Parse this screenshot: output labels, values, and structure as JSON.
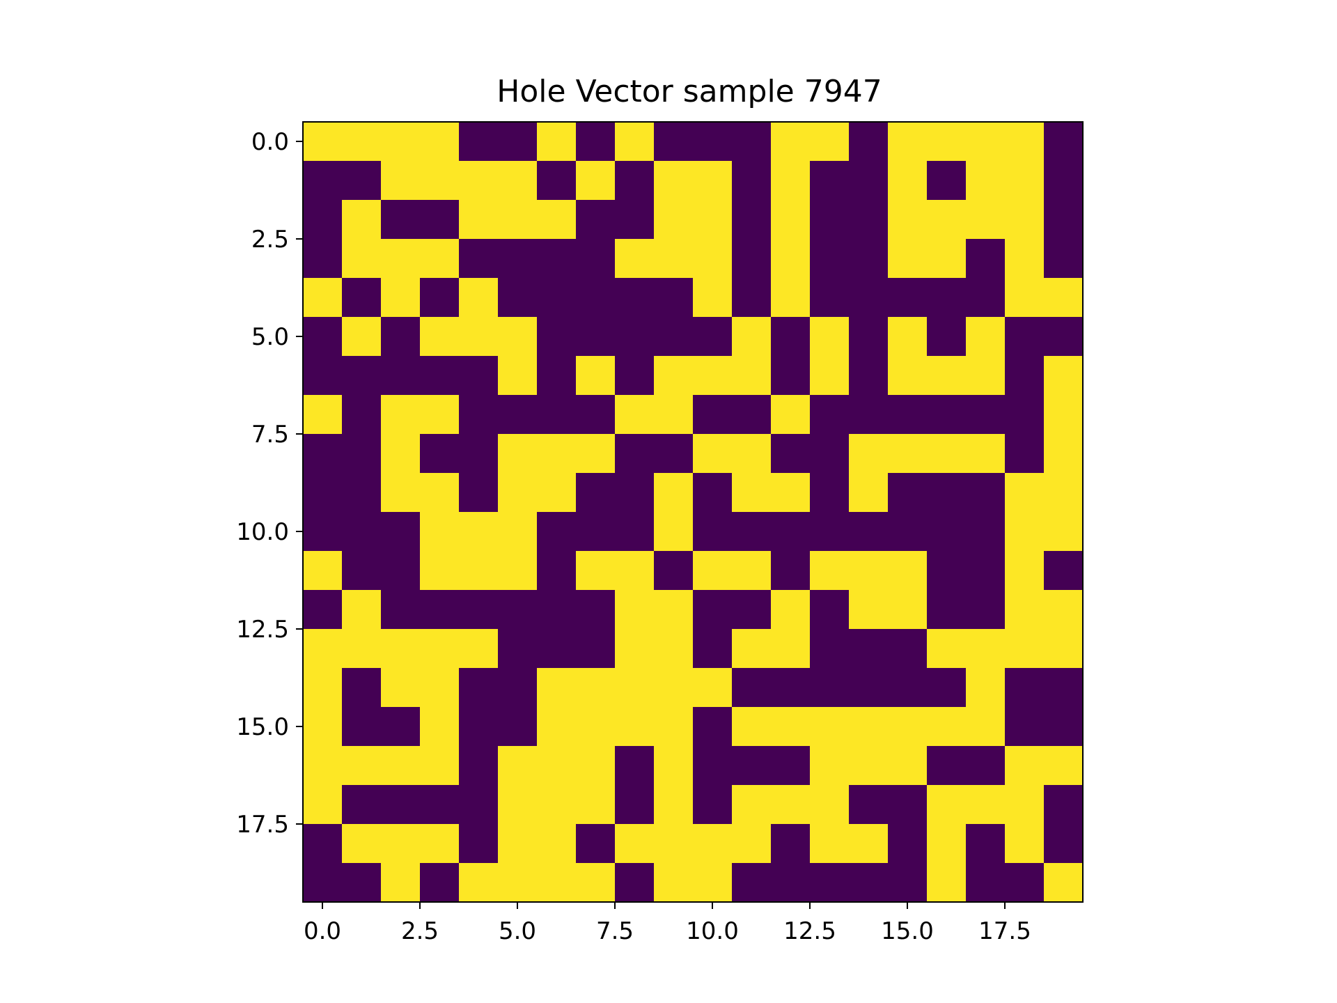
{
  "chart_data": {
    "type": "heatmap",
    "title": "Hole Vector sample 7947",
    "xlabel": "",
    "ylabel": "",
    "colormap": "viridis",
    "colors": {
      "0": "#440154",
      "1": "#fde725"
    },
    "xlim": [
      -0.5,
      19.5
    ],
    "ylim": [
      19.5,
      -0.5
    ],
    "x_ticks": [
      0.0,
      2.5,
      5.0,
      7.5,
      10.0,
      12.5,
      15.0,
      17.5
    ],
    "y_ticks": [
      0.0,
      2.5,
      5.0,
      7.5,
      10.0,
      12.5,
      15.0,
      17.5
    ],
    "x_tick_labels": [
      "0.0",
      "2.5",
      "5.0",
      "7.5",
      "10.0",
      "12.5",
      "15.0",
      "17.5"
    ],
    "y_tick_labels": [
      "0.0",
      "2.5",
      "5.0",
      "7.5",
      "10.0",
      "12.5",
      "15.0",
      "17.5"
    ],
    "grid": false,
    "rows": [
      "11110010100011011110",
      "00111101011010010110",
      "01001110011010011110",
      "01110000111010011010",
      "10101000001010000011",
      "01011100000101010100",
      "00000101011101011101",
      "10110000110010000001",
      "00100111001100111101",
      "00110110010110100011",
      "00011100010000000011",
      "10011101101101110010",
      "01000000110010110011",
      "11111000110110001111",
      "10110011111000000100",
      "10010011110111111100",
      "11110111010001110011",
      "10000111010111001110",
      "01110110111101101010",
      "00101111011000001001"
    ]
  }
}
